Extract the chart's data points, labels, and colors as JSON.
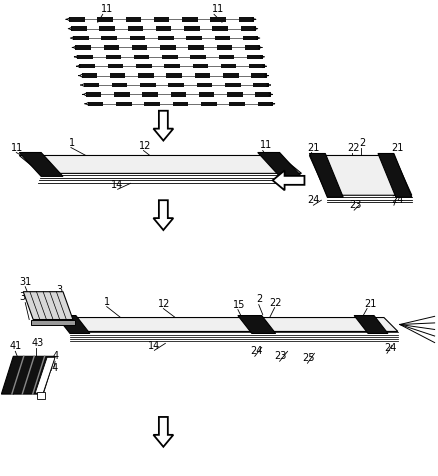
{
  "bg_color": "#ffffff",
  "line_color": "#000000",
  "dark_fill": "#111111",
  "mid_gray": "#777777"
}
